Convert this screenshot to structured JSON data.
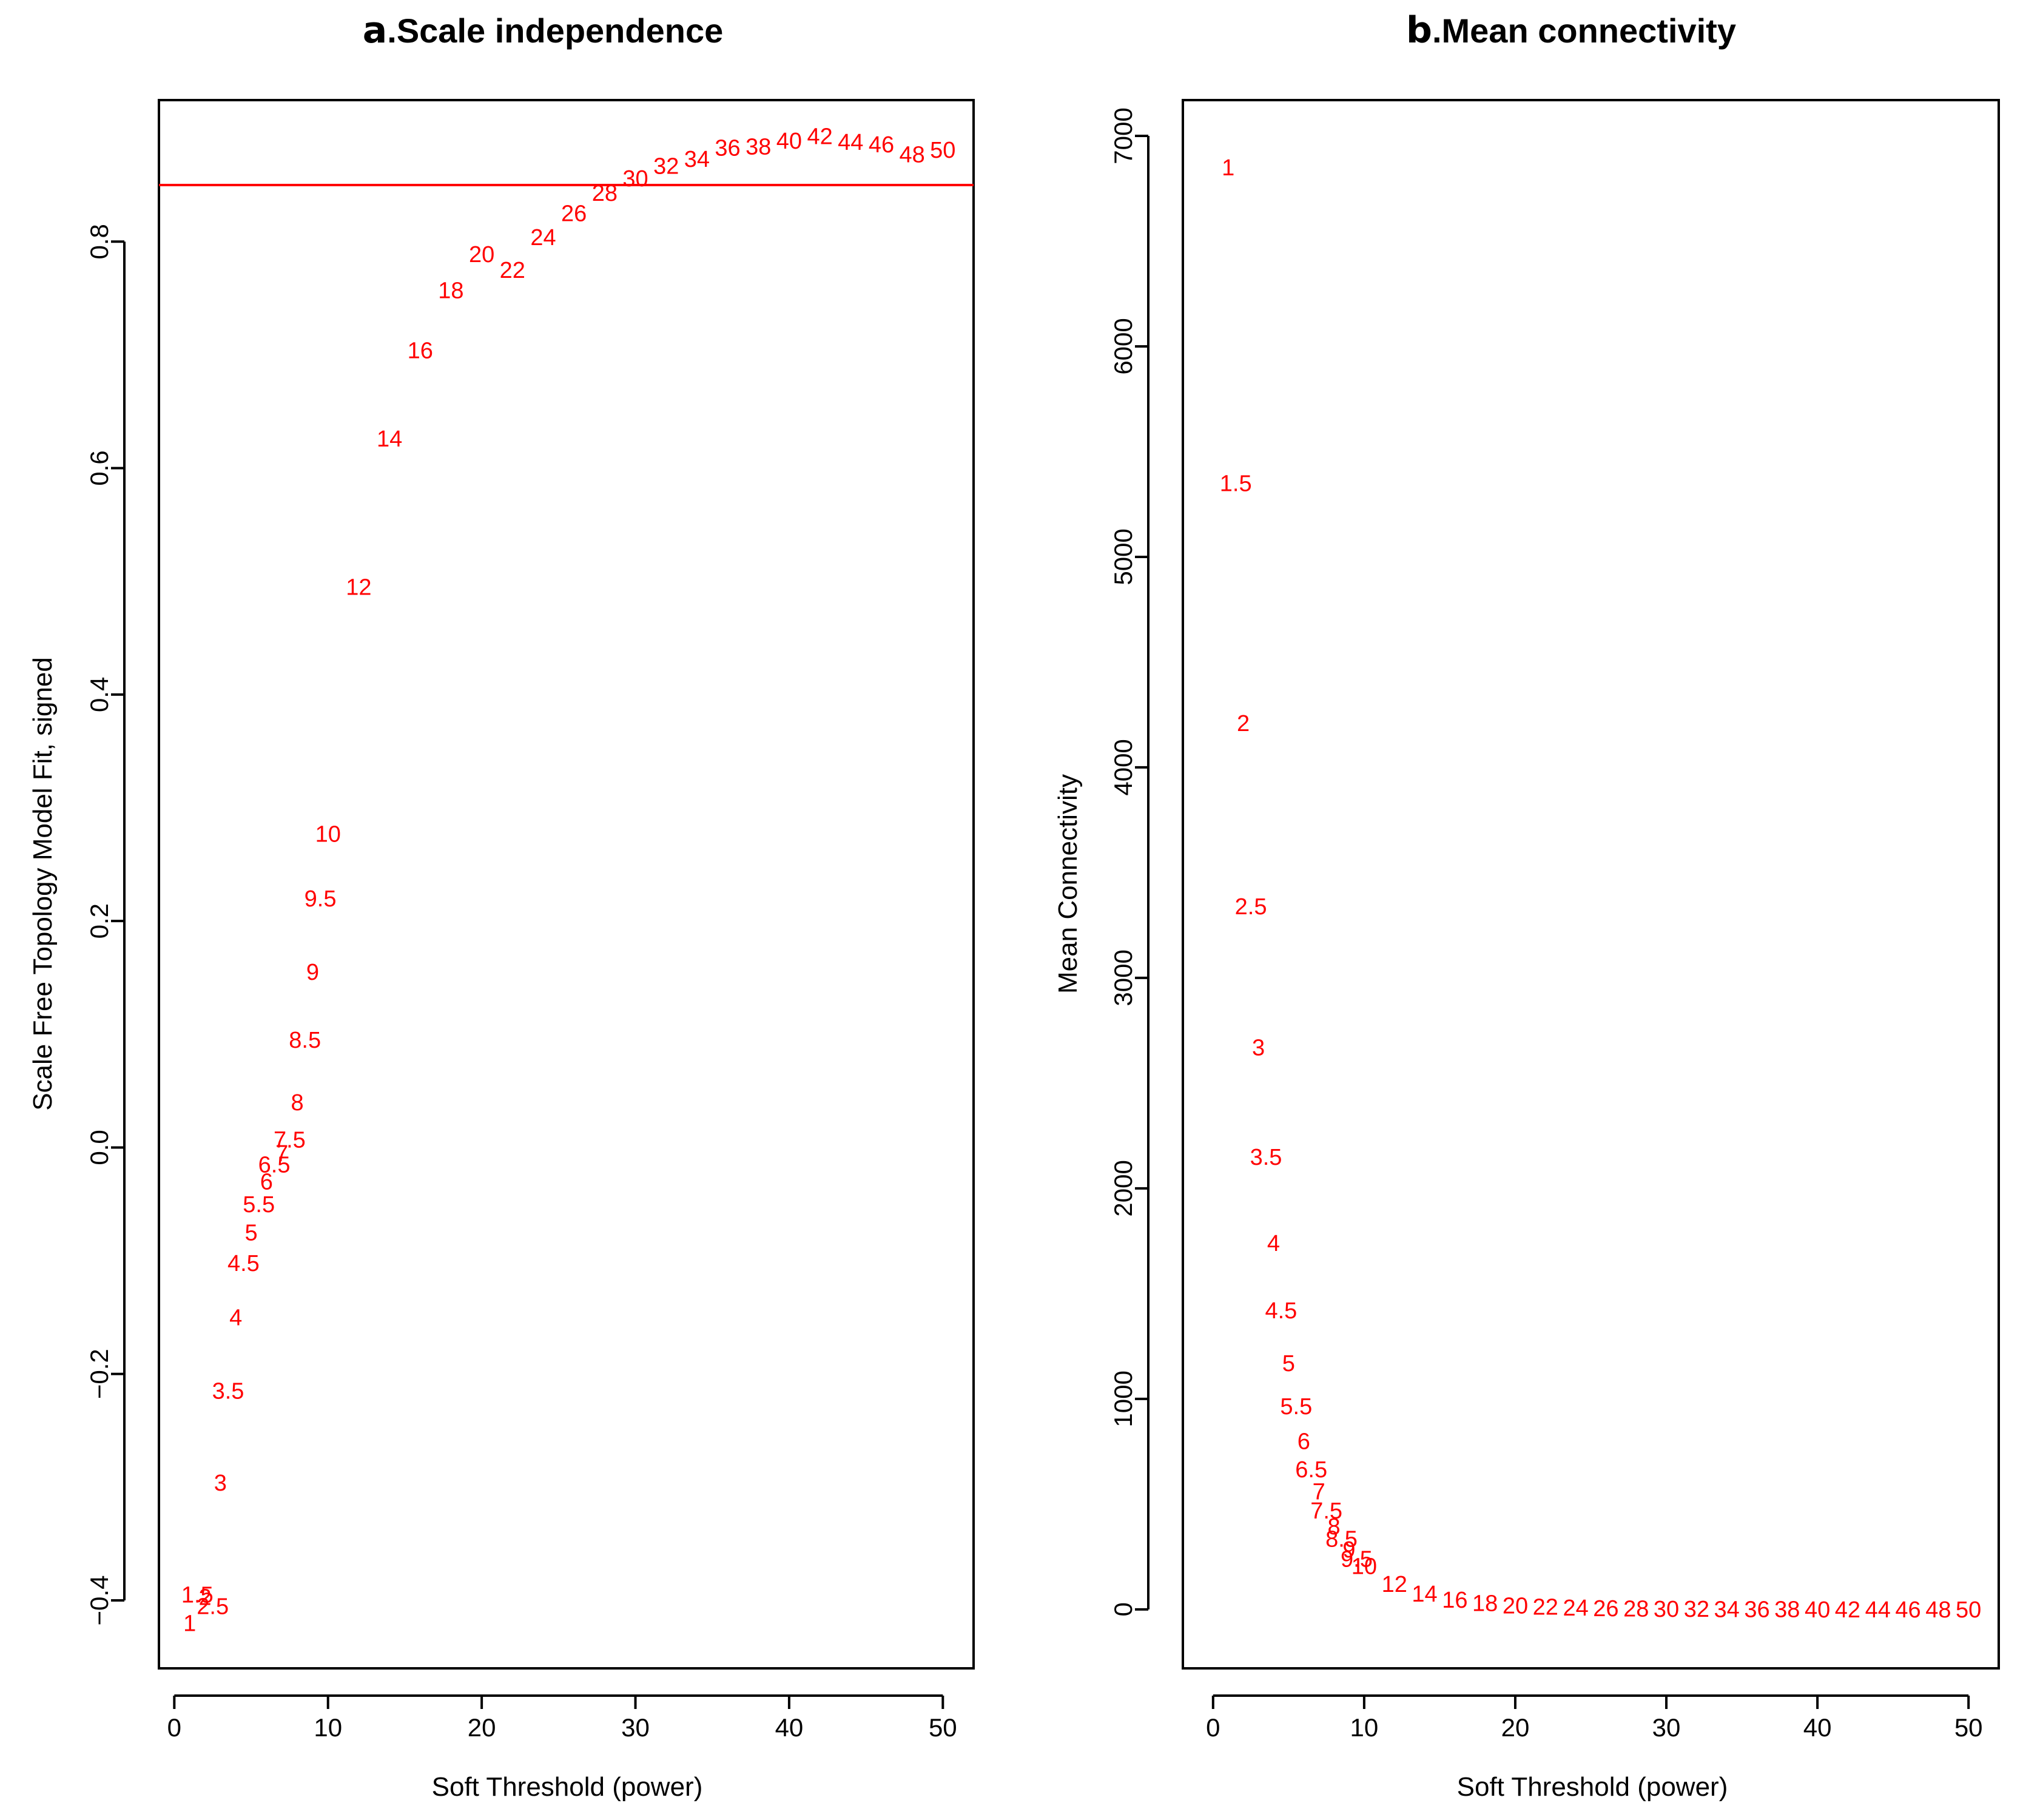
{
  "chart_data": [
    {
      "type": "scatter",
      "panel_letter": "a",
      "title": "Scale independence",
      "xlabel": "Soft Threshold (power)",
      "ylabel": "Scale Free Topology Model Fit, signed",
      "xlim": [
        -1,
        52
      ],
      "ylim": [
        -0.46,
        0.925
      ],
      "x_ticks": [
        0,
        10,
        20,
        30,
        40,
        50
      ],
      "y_ticks": [
        -0.4,
        -0.2,
        0.0,
        0.2,
        0.4,
        0.6,
        0.8
      ],
      "y_tick_labels": [
        "−0.4",
        "−0.2",
        "0.0",
        "0.2",
        "0.4",
        "0.6",
        "0.8"
      ],
      "reference_line": {
        "y": 0.85,
        "color": "#ff0000"
      },
      "marker": "text",
      "color": "#ff0000",
      "points": [
        {
          "x": 1,
          "y": -0.42,
          "label": "1"
        },
        {
          "x": 1.5,
          "y": -0.395,
          "label": "1.5"
        },
        {
          "x": 2,
          "y": -0.397,
          "label": "2"
        },
        {
          "x": 2.5,
          "y": -0.405,
          "label": "2.5"
        },
        {
          "x": 3,
          "y": -0.296,
          "label": "3"
        },
        {
          "x": 3.5,
          "y": -0.215,
          "label": "3.5"
        },
        {
          "x": 4,
          "y": -0.15,
          "label": "4"
        },
        {
          "x": 4.5,
          "y": -0.102,
          "label": "4.5"
        },
        {
          "x": 5,
          "y": -0.075,
          "label": "5"
        },
        {
          "x": 5.5,
          "y": -0.05,
          "label": "5.5"
        },
        {
          "x": 6,
          "y": -0.03,
          "label": "6"
        },
        {
          "x": 6.5,
          "y": -0.015,
          "label": "6.5"
        },
        {
          "x": 7,
          "y": -0.005,
          "label": "7"
        },
        {
          "x": 7.5,
          "y": 0.007,
          "label": "7.5"
        },
        {
          "x": 8,
          "y": 0.04,
          "label": "8"
        },
        {
          "x": 8.5,
          "y": 0.095,
          "label": "8.5"
        },
        {
          "x": 9,
          "y": 0.155,
          "label": "9"
        },
        {
          "x": 9.5,
          "y": 0.22,
          "label": "9.5"
        },
        {
          "x": 10,
          "y": 0.277,
          "label": "10"
        },
        {
          "x": 12,
          "y": 0.495,
          "label": "12"
        },
        {
          "x": 14,
          "y": 0.626,
          "label": "14"
        },
        {
          "x": 16,
          "y": 0.704,
          "label": "16"
        },
        {
          "x": 18,
          "y": 0.757,
          "label": "18"
        },
        {
          "x": 20,
          "y": 0.789,
          "label": "20"
        },
        {
          "x": 22,
          "y": 0.775,
          "label": "22"
        },
        {
          "x": 24,
          "y": 0.804,
          "label": "24"
        },
        {
          "x": 26,
          "y": 0.825,
          "label": "26"
        },
        {
          "x": 28,
          "y": 0.843,
          "label": "28"
        },
        {
          "x": 30,
          "y": 0.856,
          "label": "30"
        },
        {
          "x": 32,
          "y": 0.867,
          "label": "32"
        },
        {
          "x": 34,
          "y": 0.873,
          "label": "34"
        },
        {
          "x": 36,
          "y": 0.883,
          "label": "36"
        },
        {
          "x": 38,
          "y": 0.884,
          "label": "38"
        },
        {
          "x": 40,
          "y": 0.889,
          "label": "40"
        },
        {
          "x": 42,
          "y": 0.893,
          "label": "42"
        },
        {
          "x": 44,
          "y": 0.888,
          "label": "44"
        },
        {
          "x": 46,
          "y": 0.886,
          "label": "46"
        },
        {
          "x": 48,
          "y": 0.877,
          "label": "48"
        },
        {
          "x": 50,
          "y": 0.881,
          "label": "50"
        }
      ]
    },
    {
      "type": "scatter",
      "panel_letter": "b",
      "title": "Mean connectivity",
      "xlabel": "Soft Threshold (power)",
      "ylabel": "Mean Connectivity",
      "xlim": [
        -2,
        52
      ],
      "ylim": [
        -280,
        7170
      ],
      "x_ticks": [
        0,
        10,
        20,
        30,
        40,
        50
      ],
      "y_ticks": [
        0,
        1000,
        2000,
        3000,
        4000,
        5000,
        6000,
        7000
      ],
      "y_tick_labels": [
        "0",
        "1000",
        "2000",
        "3000",
        "4000",
        "5000",
        "6000",
        "7000"
      ],
      "marker": "text",
      "color": "#ff0000",
      "points": [
        {
          "x": 1,
          "y": 6850,
          "label": "1"
        },
        {
          "x": 1.5,
          "y": 5350,
          "label": "1.5"
        },
        {
          "x": 2,
          "y": 4210,
          "label": "2"
        },
        {
          "x": 2.5,
          "y": 3340,
          "label": "2.5"
        },
        {
          "x": 3,
          "y": 2670,
          "label": "3"
        },
        {
          "x": 3.5,
          "y": 2150,
          "label": "3.5"
        },
        {
          "x": 4,
          "y": 1740,
          "label": "4"
        },
        {
          "x": 4.5,
          "y": 1420,
          "label": "4.5"
        },
        {
          "x": 5,
          "y": 1170,
          "label": "5"
        },
        {
          "x": 5.5,
          "y": 965,
          "label": "5.5"
        },
        {
          "x": 6,
          "y": 800,
          "label": "6"
        },
        {
          "x": 6.5,
          "y": 665,
          "label": "6.5"
        },
        {
          "x": 7,
          "y": 560,
          "label": "7"
        },
        {
          "x": 7.5,
          "y": 470,
          "label": "7.5"
        },
        {
          "x": 8,
          "y": 395,
          "label": "8"
        },
        {
          "x": 8.5,
          "y": 335,
          "label": "8.5"
        },
        {
          "x": 9,
          "y": 285,
          "label": "9"
        },
        {
          "x": 9.5,
          "y": 240,
          "label": "9.5"
        },
        {
          "x": 10,
          "y": 205,
          "label": "10"
        },
        {
          "x": 12,
          "y": 120,
          "label": "12"
        },
        {
          "x": 14,
          "y": 75,
          "label": "14"
        },
        {
          "x": 16,
          "y": 45,
          "label": "16"
        },
        {
          "x": 18,
          "y": 30,
          "label": "18"
        },
        {
          "x": 20,
          "y": 18,
          "label": "20"
        },
        {
          "x": 22,
          "y": 12,
          "label": "22"
        },
        {
          "x": 24,
          "y": 8,
          "label": "24"
        },
        {
          "x": 26,
          "y": 5,
          "label": "26"
        },
        {
          "x": 28,
          "y": 4,
          "label": "28"
        },
        {
          "x": 30,
          "y": 3,
          "label": "30"
        },
        {
          "x": 32,
          "y": 2,
          "label": "32"
        },
        {
          "x": 34,
          "y": 1,
          "label": "34"
        },
        {
          "x": 36,
          "y": 1,
          "label": "36"
        },
        {
          "x": 38,
          "y": 1,
          "label": "38"
        },
        {
          "x": 40,
          "y": 0,
          "label": "40"
        },
        {
          "x": 42,
          "y": 0,
          "label": "42"
        },
        {
          "x": 44,
          "y": 0,
          "label": "44"
        },
        {
          "x": 46,
          "y": 0,
          "label": "46"
        },
        {
          "x": 48,
          "y": 0,
          "label": "48"
        },
        {
          "x": 50,
          "y": 0,
          "label": "50"
        }
      ]
    }
  ]
}
